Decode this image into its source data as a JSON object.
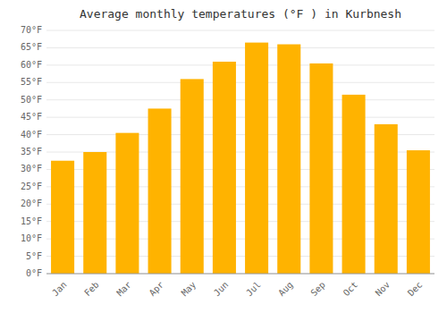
{
  "chart_data": {
    "type": "bar",
    "title": "Average monthly temperatures (°F ) in Kurbnesh",
    "categories": [
      "Jan",
      "Feb",
      "Mar",
      "Apr",
      "May",
      "Jun",
      "Jul",
      "Aug",
      "Sep",
      "Oct",
      "Nov",
      "Dec"
    ],
    "values": [
      32.5,
      35,
      40.5,
      47.5,
      56,
      61,
      66.5,
      66,
      60.5,
      51.5,
      43,
      35.5
    ],
    "color": "#FFB300",
    "ylim": [
      0,
      70
    ],
    "yticks": [
      {
        "value": 0,
        "label": "0°F"
      },
      {
        "value": 5,
        "label": "5°F"
      },
      {
        "value": 10,
        "label": "10°F"
      },
      {
        "value": 15,
        "label": "15°F"
      },
      {
        "value": 20,
        "label": "20°F"
      },
      {
        "value": 25,
        "label": "25°F"
      },
      {
        "value": 30,
        "label": "30°F"
      },
      {
        "value": 35,
        "label": "35°F"
      },
      {
        "value": 40,
        "label": "40°F"
      },
      {
        "value": 45,
        "label": "45°F"
      },
      {
        "value": 50,
        "label": "50°F"
      },
      {
        "value": 55,
        "label": "55°F"
      },
      {
        "value": 60,
        "label": "60°F"
      },
      {
        "value": 65,
        "label": "65°F"
      },
      {
        "value": 70,
        "label": "70°F"
      }
    ],
    "grid": true
  }
}
